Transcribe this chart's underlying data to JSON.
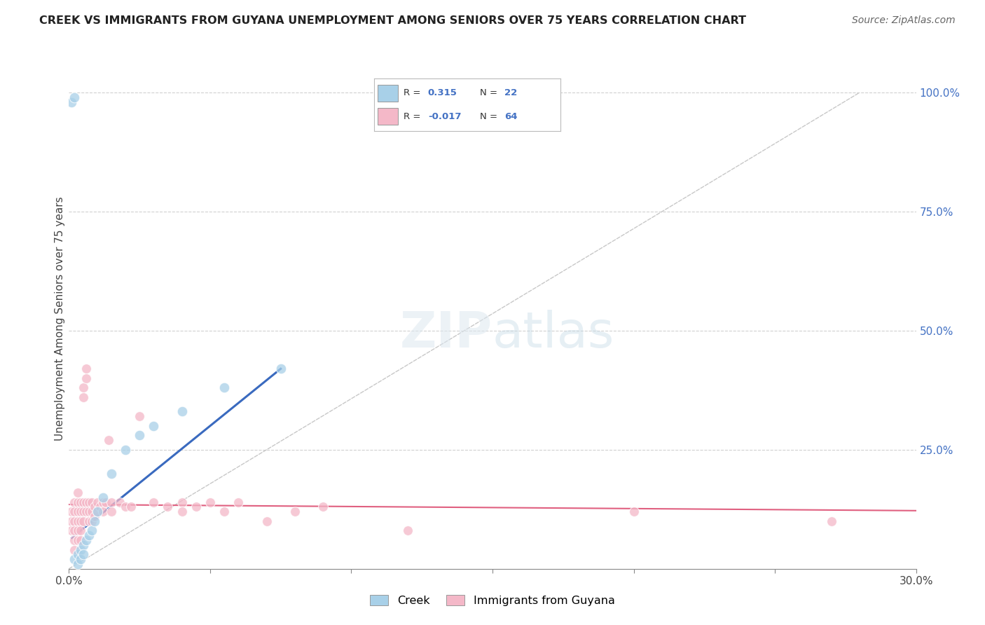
{
  "title": "CREEK VS IMMIGRANTS FROM GUYANA UNEMPLOYMENT AMONG SENIORS OVER 75 YEARS CORRELATION CHART",
  "source": "Source: ZipAtlas.com",
  "ylabel": "Unemployment Among Seniors over 75 years",
  "x_min": 0.0,
  "x_max": 0.3,
  "y_min": 0.0,
  "y_max": 1.05,
  "creek_R": 0.315,
  "creek_N": 22,
  "guyana_R": -0.017,
  "guyana_N": 64,
  "creek_color": "#a8d0e8",
  "guyana_color": "#f4b8c8",
  "creek_line_color": "#3a6abf",
  "guyana_line_color": "#e06080",
  "diagonal_color": "#c8c8c8",
  "watermark_zip": "ZIP",
  "watermark_atlas": "atlas",
  "creek_points": [
    [
      0.001,
      0.98
    ],
    [
      0.002,
      0.99
    ],
    [
      0.002,
      0.02
    ],
    [
      0.003,
      0.03
    ],
    [
      0.003,
      0.01
    ],
    [
      0.004,
      0.04
    ],
    [
      0.004,
      0.02
    ],
    [
      0.005,
      0.05
    ],
    [
      0.005,
      0.03
    ],
    [
      0.006,
      0.06
    ],
    [
      0.007,
      0.07
    ],
    [
      0.008,
      0.08
    ],
    [
      0.009,
      0.1
    ],
    [
      0.01,
      0.12
    ],
    [
      0.012,
      0.15
    ],
    [
      0.015,
      0.2
    ],
    [
      0.02,
      0.25
    ],
    [
      0.025,
      0.28
    ],
    [
      0.03,
      0.3
    ],
    [
      0.04,
      0.33
    ],
    [
      0.055,
      0.38
    ],
    [
      0.075,
      0.42
    ]
  ],
  "guyana_points": [
    [
      0.001,
      0.12
    ],
    [
      0.001,
      0.1
    ],
    [
      0.001,
      0.08
    ],
    [
      0.002,
      0.14
    ],
    [
      0.002,
      0.12
    ],
    [
      0.002,
      0.1
    ],
    [
      0.002,
      0.08
    ],
    [
      0.002,
      0.06
    ],
    [
      0.002,
      0.04
    ],
    [
      0.003,
      0.16
    ],
    [
      0.003,
      0.14
    ],
    [
      0.003,
      0.12
    ],
    [
      0.003,
      0.1
    ],
    [
      0.003,
      0.08
    ],
    [
      0.003,
      0.06
    ],
    [
      0.004,
      0.14
    ],
    [
      0.004,
      0.12
    ],
    [
      0.004,
      0.1
    ],
    [
      0.004,
      0.08
    ],
    [
      0.004,
      0.06
    ],
    [
      0.005,
      0.38
    ],
    [
      0.005,
      0.36
    ],
    [
      0.005,
      0.14
    ],
    [
      0.005,
      0.12
    ],
    [
      0.005,
      0.1
    ],
    [
      0.006,
      0.42
    ],
    [
      0.006,
      0.4
    ],
    [
      0.006,
      0.14
    ],
    [
      0.006,
      0.12
    ],
    [
      0.007,
      0.14
    ],
    [
      0.007,
      0.12
    ],
    [
      0.007,
      0.1
    ],
    [
      0.008,
      0.14
    ],
    [
      0.008,
      0.12
    ],
    [
      0.008,
      0.1
    ],
    [
      0.009,
      0.13
    ],
    [
      0.009,
      0.11
    ],
    [
      0.01,
      0.14
    ],
    [
      0.01,
      0.12
    ],
    [
      0.011,
      0.13
    ],
    [
      0.012,
      0.14
    ],
    [
      0.012,
      0.12
    ],
    [
      0.013,
      0.14
    ],
    [
      0.014,
      0.27
    ],
    [
      0.015,
      0.14
    ],
    [
      0.015,
      0.12
    ],
    [
      0.018,
      0.14
    ],
    [
      0.02,
      0.13
    ],
    [
      0.022,
      0.13
    ],
    [
      0.025,
      0.32
    ],
    [
      0.03,
      0.14
    ],
    [
      0.035,
      0.13
    ],
    [
      0.04,
      0.14
    ],
    [
      0.04,
      0.12
    ],
    [
      0.045,
      0.13
    ],
    [
      0.05,
      0.14
    ],
    [
      0.055,
      0.12
    ],
    [
      0.06,
      0.14
    ],
    [
      0.07,
      0.1
    ],
    [
      0.08,
      0.12
    ],
    [
      0.09,
      0.13
    ],
    [
      0.12,
      0.08
    ],
    [
      0.2,
      0.12
    ],
    [
      0.27,
      0.1
    ]
  ],
  "creek_line": [
    [
      0.001,
      0.065
    ],
    [
      0.075,
      0.42
    ]
  ],
  "guyana_line": [
    [
      0.0,
      0.135
    ],
    [
      0.3,
      0.122
    ]
  ],
  "diagonal_line": [
    [
      0.0,
      0.0
    ],
    [
      0.28,
      1.0
    ]
  ],
  "x_ticks": [
    0.0,
    0.05,
    0.1,
    0.15,
    0.2,
    0.25,
    0.3
  ],
  "x_tick_labels": [
    "0.0%",
    "",
    "",
    "",
    "",
    "",
    "30.0%"
  ],
  "y_ticks": [
    0.0,
    0.25,
    0.5,
    0.75,
    1.0
  ],
  "y_tick_labels_right": [
    "",
    "25.0%",
    "50.0%",
    "75.0%",
    "100.0%"
  ]
}
